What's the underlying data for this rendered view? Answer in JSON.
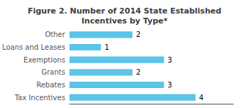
{
  "chart_data": {
    "type": "bar",
    "orientation": "horizontal",
    "title": "Figure 2. Number of 2014 State Established\nIncentives by Type*",
    "categories": [
      "Tax Incentives",
      "Rebates",
      "Grants",
      "Exemptions",
      "Loans and Leases",
      "Other"
    ],
    "values": [
      4,
      3,
      2,
      3,
      1,
      2
    ],
    "color": "#5bc4e8",
    "xlim": [
      0,
      5.2
    ],
    "grid": false,
    "data_labels": true,
    "tick_labels": "y"
  }
}
